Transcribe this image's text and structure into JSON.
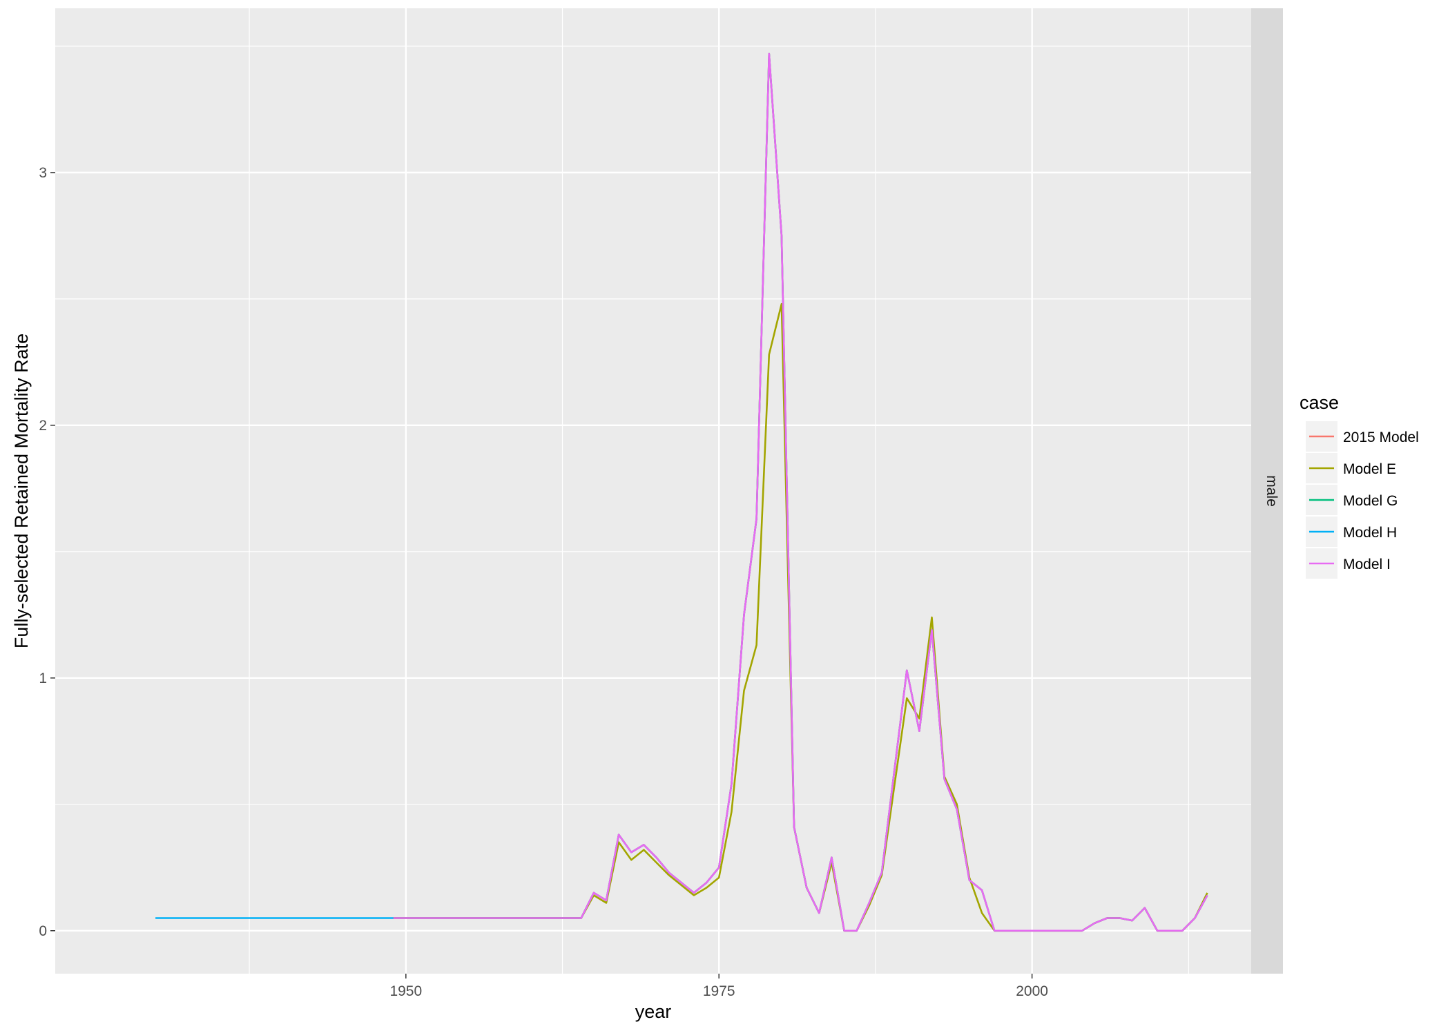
{
  "chart_data": {
    "type": "line",
    "title": "",
    "xlabel": "year",
    "ylabel": "Fully-selected Retained Mortality Rate",
    "xlim": [
      1922,
      2017.5
    ],
    "ylim": [
      -0.17,
      3.65
    ],
    "xticks": [
      1950,
      1975,
      2000
    ],
    "yticks": [
      0,
      1,
      2,
      3
    ],
    "x_minor": [
      1937.5,
      1962.5,
      1987.5,
      2012.5
    ],
    "y_minor": [
      0.5,
      1.5,
      2.5,
      3.5
    ],
    "grid": true,
    "facet_label": "male",
    "legend": {
      "title": "case",
      "position": "right"
    },
    "colors": {
      "panel_bg": "#ebebeb",
      "grid": "#ffffff",
      "strip_bg": "#d9d9d9",
      "legend_key_bg": "#f2f2f2"
    },
    "series": [
      {
        "name": "2015 Model",
        "color": "#f8766d",
        "x": [
          1949,
          1964,
          1965,
          1966,
          1967,
          1968,
          1969,
          1970,
          1971,
          1972,
          1973,
          1974,
          1975,
          1976,
          1977,
          1978,
          1979,
          1980,
          1981,
          1982,
          1983,
          1984,
          1985,
          1986,
          1987,
          1988,
          1989,
          1990,
          1991,
          1992,
          1993,
          1994,
          1995,
          1996,
          1997,
          1998,
          1999,
          2000,
          2001,
          2002,
          2003,
          2004,
          2005,
          2006,
          2007,
          2008,
          2009,
          2010,
          2011,
          2012,
          2013,
          2014
        ],
        "y": [
          0.05,
          0.05,
          0.15,
          0.12,
          0.38,
          0.31,
          0.34,
          0.29,
          0.23,
          0.19,
          0.15,
          0.19,
          0.25,
          0.58,
          1.25,
          1.63,
          3.47,
          2.75,
          0.41,
          0.17,
          0.07,
          0.29,
          0.0,
          0.0,
          0.11,
          0.23,
          0.63,
          1.03,
          0.79,
          1.19,
          0.6,
          0.48,
          0.2,
          0.16,
          0.0,
          0.0,
          0.0,
          0.0,
          0.0,
          0.0,
          0.0,
          0.0,
          0.03,
          0.05,
          0.05,
          0.04,
          0.09,
          0.0,
          0.0,
          0.0,
          0.05,
          0.14
        ]
      },
      {
        "name": "Model E",
        "color": "#a3a500",
        "x": [
          1949,
          1964,
          1965,
          1966,
          1967,
          1968,
          1969,
          1970,
          1971,
          1972,
          1973,
          1974,
          1975,
          1976,
          1977,
          1978,
          1979,
          1980,
          1981,
          1982,
          1983,
          1984,
          1985,
          1986,
          1987,
          1988,
          1989,
          1990,
          1991,
          1992,
          1993,
          1994,
          1995,
          1996,
          1997,
          1998,
          1999,
          2000,
          2001,
          2002,
          2003,
          2004,
          2005,
          2006,
          2007,
          2008,
          2009,
          2010,
          2011,
          2012,
          2013,
          2014
        ],
        "y": [
          0.05,
          0.05,
          0.14,
          0.11,
          0.35,
          0.28,
          0.32,
          0.27,
          0.22,
          0.18,
          0.14,
          0.17,
          0.21,
          0.47,
          0.95,
          1.13,
          2.28,
          2.48,
          0.41,
          0.17,
          0.07,
          0.27,
          0.0,
          0.0,
          0.1,
          0.22,
          0.57,
          0.92,
          0.84,
          1.24,
          0.61,
          0.5,
          0.21,
          0.07,
          0.0,
          0.0,
          0.0,
          0.0,
          0.0,
          0.0,
          0.0,
          0.0,
          0.03,
          0.05,
          0.05,
          0.04,
          0.09,
          0.0,
          0.0,
          0.0,
          0.05,
          0.15
        ]
      },
      {
        "name": "Model G",
        "color": "#00bf7d",
        "x": [
          1949,
          1964,
          1965,
          1966,
          1967,
          1968,
          1969,
          1970,
          1971,
          1972,
          1973,
          1974,
          1975,
          1976,
          1977,
          1978,
          1979,
          1980,
          1981,
          1982,
          1983,
          1984,
          1985,
          1986,
          1987,
          1988,
          1989,
          1990,
          1991,
          1992,
          1993,
          1994,
          1995,
          1996,
          1997,
          1998,
          1999,
          2000,
          2001,
          2002,
          2003,
          2004,
          2005,
          2006,
          2007,
          2008,
          2009,
          2010,
          2011,
          2012,
          2013,
          2014
        ],
        "y": [
          0.05,
          0.05,
          0.15,
          0.12,
          0.38,
          0.31,
          0.34,
          0.29,
          0.23,
          0.19,
          0.15,
          0.19,
          0.25,
          0.58,
          1.25,
          1.63,
          3.47,
          2.75,
          0.41,
          0.17,
          0.07,
          0.29,
          0.0,
          0.0,
          0.11,
          0.23,
          0.63,
          1.03,
          0.79,
          1.19,
          0.6,
          0.48,
          0.2,
          0.16,
          0.0,
          0.0,
          0.0,
          0.0,
          0.0,
          0.0,
          0.0,
          0.0,
          0.03,
          0.05,
          0.05,
          0.04,
          0.09,
          0.0,
          0.0,
          0.0,
          0.05,
          0.14
        ]
      },
      {
        "name": "Model H",
        "color": "#00b0f6",
        "x": [
          1930,
          1949
        ],
        "y": [
          0.05,
          0.05
        ]
      },
      {
        "name": "Model I",
        "color": "#e76bf3",
        "x": [
          1949,
          1964,
          1965,
          1966,
          1967,
          1968,
          1969,
          1970,
          1971,
          1972,
          1973,
          1974,
          1975,
          1976,
          1977,
          1978,
          1979,
          1980,
          1981,
          1982,
          1983,
          1984,
          1985,
          1986,
          1987,
          1988,
          1989,
          1990,
          1991,
          1992,
          1993,
          1994,
          1995,
          1996,
          1997,
          1998,
          1999,
          2000,
          2001,
          2002,
          2003,
          2004,
          2005,
          2006,
          2007,
          2008,
          2009,
          2010,
          2011,
          2012,
          2013,
          2014
        ],
        "y": [
          0.05,
          0.05,
          0.15,
          0.12,
          0.38,
          0.31,
          0.34,
          0.29,
          0.23,
          0.19,
          0.15,
          0.19,
          0.25,
          0.58,
          1.25,
          1.63,
          3.47,
          2.75,
          0.41,
          0.17,
          0.07,
          0.29,
          0.0,
          0.0,
          0.11,
          0.23,
          0.63,
          1.03,
          0.79,
          1.19,
          0.6,
          0.48,
          0.2,
          0.16,
          0.0,
          0.0,
          0.0,
          0.0,
          0.0,
          0.0,
          0.0,
          0.0,
          0.03,
          0.05,
          0.05,
          0.04,
          0.09,
          0.0,
          0.0,
          0.0,
          0.05,
          0.14
        ]
      }
    ]
  }
}
